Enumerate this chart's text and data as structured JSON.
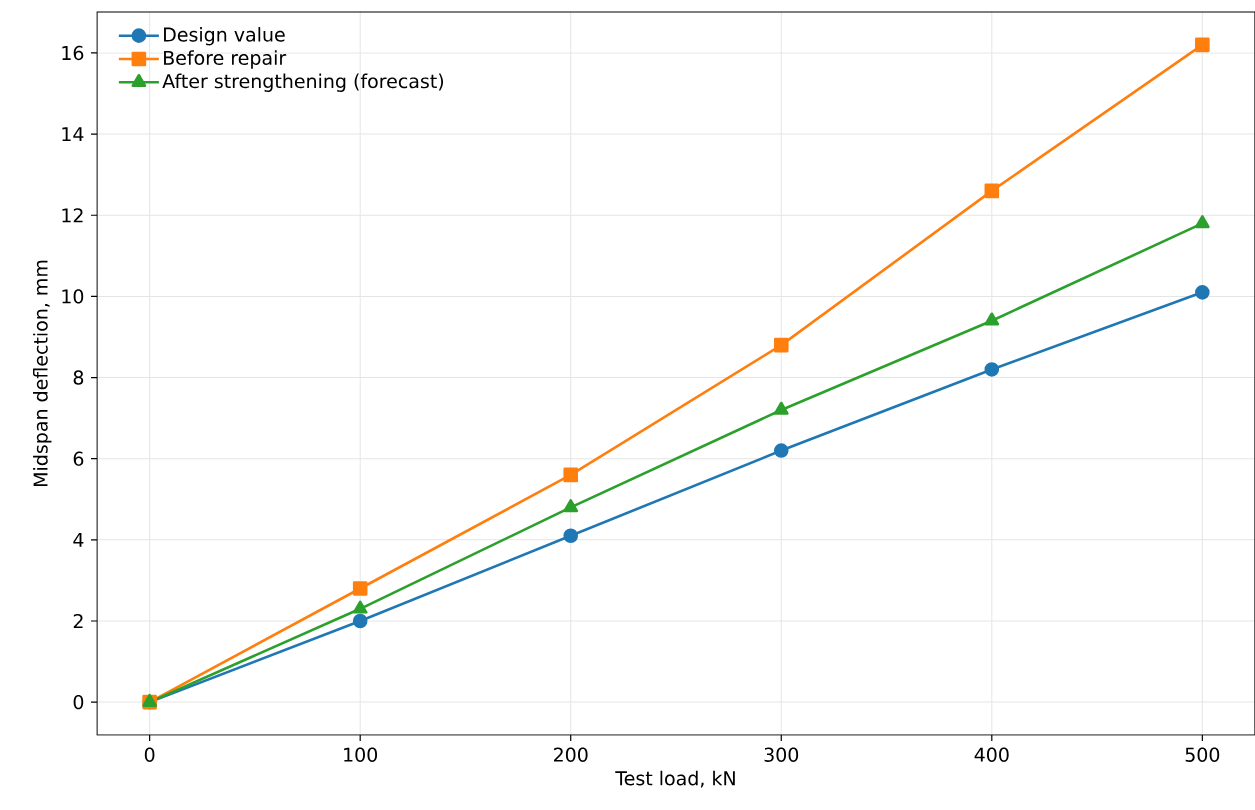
{
  "chart_data": {
    "type": "line",
    "xlabel": "Test load, kN",
    "ylabel": "Midspan deflection, mm",
    "x": [
      0,
      100,
      200,
      300,
      400,
      500
    ],
    "series": [
      {
        "name": "Design value",
        "color": "#1f77b4",
        "marker": "circle",
        "values": [
          0,
          2.0,
          4.1,
          6.2,
          8.2,
          10.1
        ]
      },
      {
        "name": "Before repair",
        "color": "#ff7f0e",
        "marker": "square",
        "values": [
          0,
          2.8,
          5.6,
          8.8,
          12.6,
          16.2
        ]
      },
      {
        "name": "After strengthening (forecast)",
        "color": "#2ca02c",
        "marker": "triangle",
        "values": [
          0,
          2.3,
          4.8,
          7.2,
          9.4,
          11.8
        ]
      }
    ],
    "xlim": [
      -25,
      525
    ],
    "ylim": [
      -0.81,
      17.01
    ],
    "xticks": [
      0,
      100,
      200,
      300,
      400,
      500
    ],
    "yticks": [
      0,
      2,
      4,
      6,
      8,
      10,
      12,
      14,
      16
    ],
    "grid": true,
    "legend": "top left",
    "line_style": "solid"
  }
}
